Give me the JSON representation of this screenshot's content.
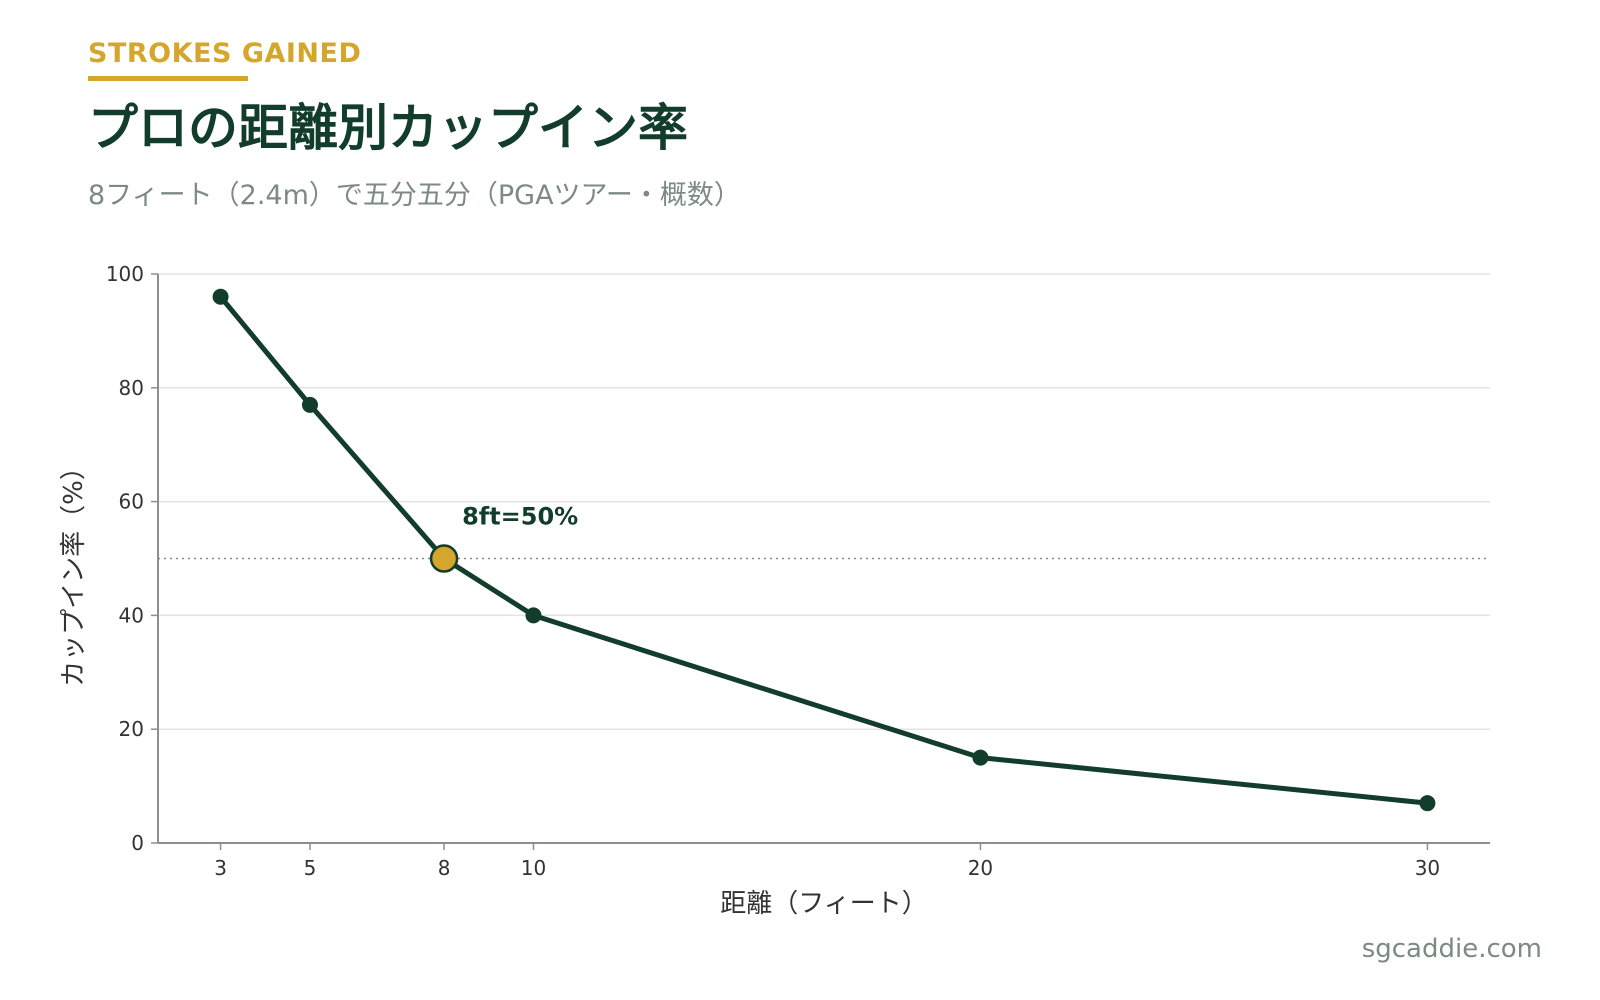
{
  "header": {
    "eyebrow": "STROKES GAINED",
    "title": "プロの距離別カップイン率",
    "subtitle": "8フィート（2.4m）で五分五分（PGAツアー・概数）"
  },
  "footer": {
    "site": "sgcaddie.com"
  },
  "colors": {
    "line": "#123d2b",
    "highlight": "#d4a72c",
    "grid": "#e3e3e3",
    "axis": "#8a918d",
    "tick_text": "#333333",
    "reference_line": "#8a8a8a"
  },
  "chart_data": {
    "type": "line",
    "xlabel": "距離（フィート）",
    "ylabel": "カップイン率（%）",
    "x": [
      3,
      5,
      8,
      10,
      20,
      30
    ],
    "series": [
      {
        "values": [
          96,
          77,
          50,
          40,
          15,
          7
        ]
      }
    ],
    "xlim": [
      1.6,
      31.4
    ],
    "ylim": [
      0,
      100
    ],
    "xticks": [
      "3",
      "5",
      "8",
      "10",
      "20",
      "30"
    ],
    "yticks": [
      "0",
      "20",
      "40",
      "60",
      "80",
      "100"
    ],
    "grid": "horizontal",
    "reference_line": {
      "y": 50,
      "style": "dotted"
    },
    "highlight_point": {
      "x": 8,
      "y": 50
    },
    "annotation": {
      "text": "8ft=50%",
      "x": 8,
      "y": 50
    }
  }
}
